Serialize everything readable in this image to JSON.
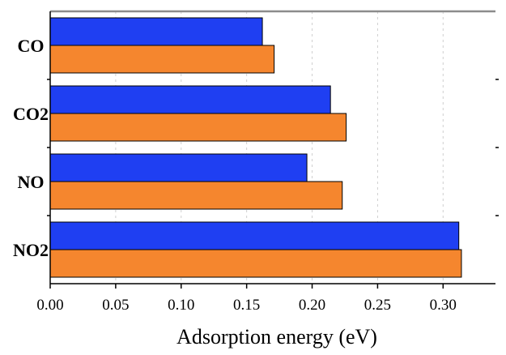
{
  "chart_data": {
    "type": "bar",
    "orientation": "horizontal",
    "title": "",
    "xlabel": "Adsorption energy (eV)",
    "ylabel": "",
    "categories": [
      "CO",
      "CO2",
      "NO",
      "NO2"
    ],
    "series": [
      {
        "values": [
          0.162,
          0.214,
          0.196,
          0.312
        ],
        "color": "#1f3ff2"
      },
      {
        "values": [
          0.171,
          0.226,
          0.223,
          0.314
        ],
        "color": "#f5862e"
      }
    ],
    "xlim": [
      0.0,
      0.34
    ],
    "xticks": [
      "0.00",
      "0.05",
      "0.10",
      "0.15",
      "0.20",
      "0.25",
      "0.30"
    ],
    "grid": "vertical dotted",
    "legend": "none"
  }
}
